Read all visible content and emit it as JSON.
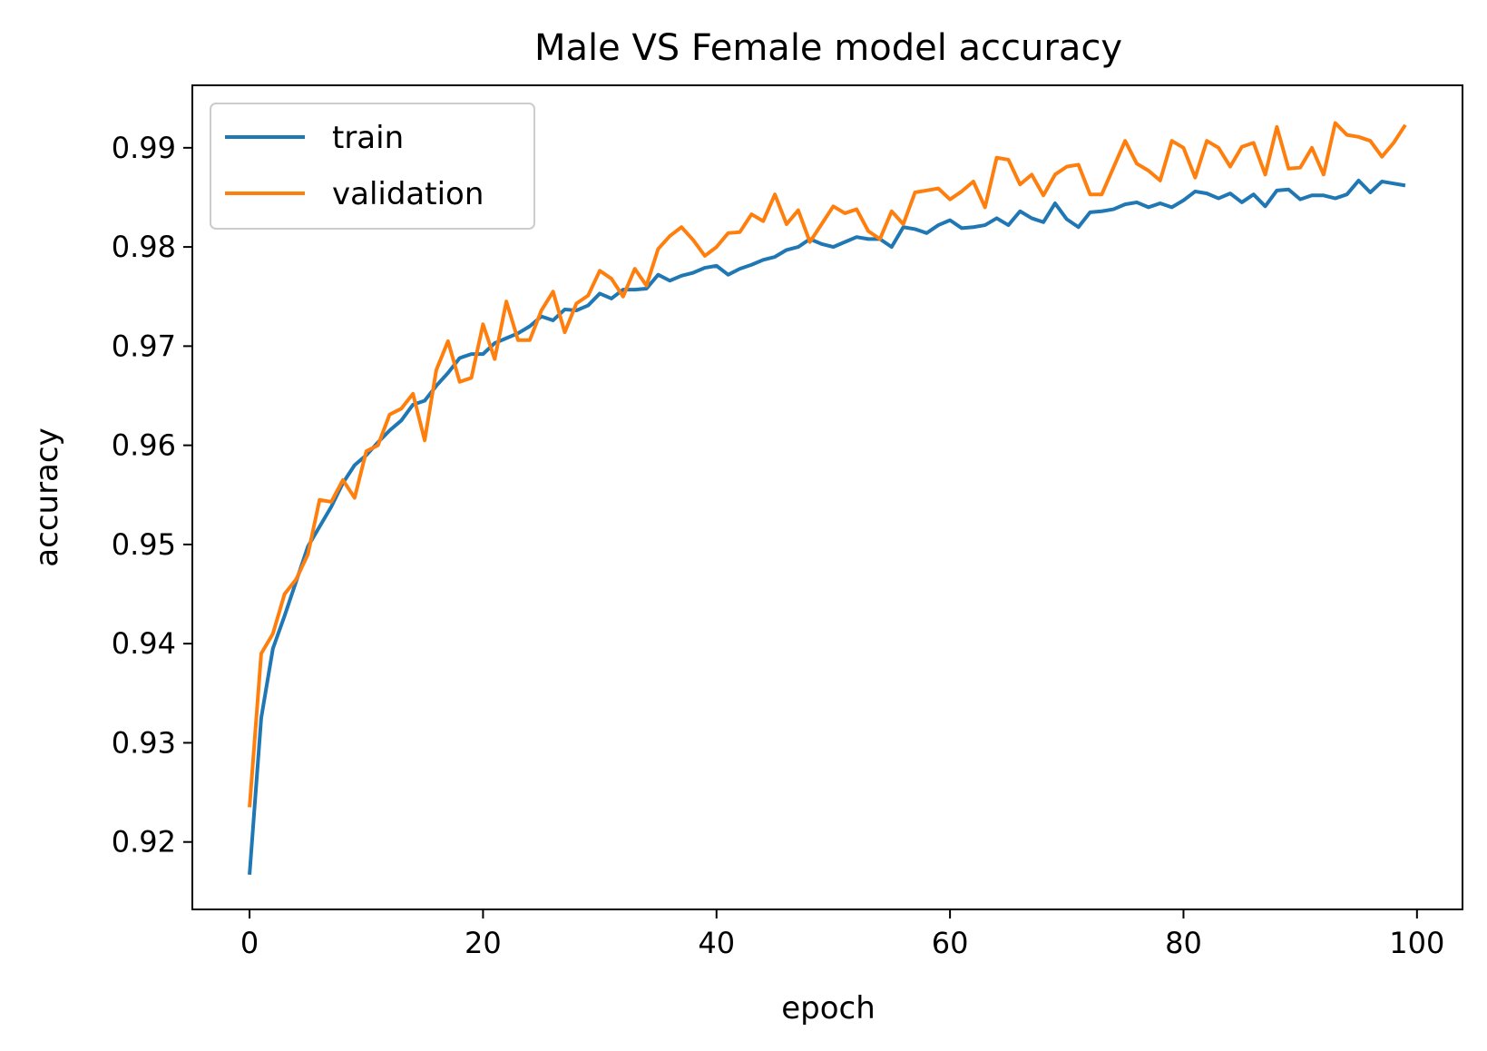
{
  "chart_data": {
    "type": "line",
    "title": "Male VS Female model accuracy",
    "xlabel": "epoch",
    "ylabel": "accuracy",
    "xlim": [
      -4.9,
      103.9
    ],
    "ylim": [
      0.9132,
      0.9963
    ],
    "xticks": [
      0,
      20,
      40,
      60,
      80,
      100
    ],
    "xtick_labels": [
      "0",
      "20",
      "40",
      "60",
      "80",
      "100"
    ],
    "yticks": [
      0.92,
      0.93,
      0.94,
      0.95,
      0.96,
      0.97,
      0.98,
      0.99
    ],
    "ytick_labels": [
      "0.92",
      "0.93",
      "0.94",
      "0.95",
      "0.96",
      "0.97",
      "0.98",
      "0.99"
    ],
    "grid": false,
    "legend_position": "top-left",
    "series": [
      {
        "name": "train",
        "color": "#1f77b4",
        "x": [
          0,
          1,
          2,
          3,
          4,
          5,
          6,
          7,
          8,
          9,
          10,
          11,
          12,
          13,
          14,
          15,
          16,
          17,
          18,
          19,
          20,
          21,
          22,
          23,
          24,
          25,
          26,
          27,
          28,
          29,
          30,
          31,
          32,
          33,
          34,
          35,
          36,
          37,
          38,
          39,
          40,
          41,
          42,
          43,
          44,
          45,
          46,
          47,
          48,
          49,
          50,
          51,
          52,
          53,
          54,
          55,
          56,
          57,
          58,
          59,
          60,
          61,
          62,
          63,
          64,
          65,
          66,
          67,
          68,
          69,
          70,
          71,
          72,
          73,
          74,
          75,
          76,
          77,
          78,
          79,
          80,
          81,
          82,
          83,
          84,
          85,
          86,
          87,
          88,
          89,
          90,
          91,
          92,
          93,
          94,
          95,
          96,
          97,
          98,
          99
        ],
        "values": [
          0.9167,
          0.9325,
          0.9395,
          0.9428,
          0.9463,
          0.9498,
          0.9518,
          0.9538,
          0.9562,
          0.958,
          0.959,
          0.9603,
          0.9615,
          0.9625,
          0.9641,
          0.9645,
          0.966,
          0.9673,
          0.9688,
          0.9692,
          0.9692,
          0.9703,
          0.9708,
          0.9713,
          0.972,
          0.973,
          0.9726,
          0.9737,
          0.9736,
          0.9741,
          0.9753,
          0.9748,
          0.9757,
          0.9757,
          0.9758,
          0.9772,
          0.9766,
          0.9771,
          0.9774,
          0.9779,
          0.9781,
          0.9772,
          0.9778,
          0.9782,
          0.9787,
          0.979,
          0.9797,
          0.98,
          0.9808,
          0.9803,
          0.98,
          0.9805,
          0.981,
          0.9808,
          0.9808,
          0.98,
          0.982,
          0.9818,
          0.9814,
          0.9822,
          0.9827,
          0.9819,
          0.982,
          0.9822,
          0.9829,
          0.9822,
          0.9836,
          0.9829,
          0.9825,
          0.9844,
          0.9828,
          0.982,
          0.9835,
          0.9836,
          0.9838,
          0.9843,
          0.9845,
          0.984,
          0.9844,
          0.984,
          0.9847,
          0.9856,
          0.9854,
          0.9849,
          0.9854,
          0.9845,
          0.9853,
          0.9841,
          0.9857,
          0.9858,
          0.9848,
          0.9852,
          0.9852,
          0.9849,
          0.9853,
          0.9867,
          0.9855,
          0.9866,
          0.9864,
          0.9862
        ]
      },
      {
        "name": "validation",
        "color": "#ff7f0e",
        "x": [
          0,
          1,
          2,
          3,
          4,
          5,
          6,
          7,
          8,
          9,
          10,
          11,
          12,
          13,
          14,
          15,
          16,
          17,
          18,
          19,
          20,
          21,
          22,
          23,
          24,
          25,
          26,
          27,
          28,
          29,
          30,
          31,
          32,
          33,
          34,
          35,
          36,
          37,
          38,
          39,
          40,
          41,
          42,
          43,
          44,
          45,
          46,
          47,
          48,
          49,
          50,
          51,
          52,
          53,
          54,
          55,
          56,
          57,
          58,
          59,
          60,
          61,
          62,
          63,
          64,
          65,
          66,
          67,
          68,
          69,
          70,
          71,
          72,
          73,
          74,
          75,
          76,
          77,
          78,
          79,
          80,
          81,
          82,
          83,
          84,
          85,
          86,
          87,
          88,
          89,
          90,
          91,
          92,
          93,
          94,
          95,
          96,
          97,
          98,
          99
        ],
        "values": [
          0.9235,
          0.939,
          0.941,
          0.945,
          0.9465,
          0.949,
          0.9545,
          0.9543,
          0.9565,
          0.9547,
          0.9594,
          0.96,
          0.9631,
          0.9637,
          0.9652,
          0.9605,
          0.9676,
          0.9705,
          0.9664,
          0.9668,
          0.9722,
          0.9687,
          0.9745,
          0.9706,
          0.9706,
          0.9736,
          0.9755,
          0.9714,
          0.9743,
          0.9751,
          0.9776,
          0.9768,
          0.975,
          0.9778,
          0.9761,
          0.9798,
          0.9811,
          0.982,
          0.9807,
          0.9791,
          0.98,
          0.9814,
          0.9815,
          0.9833,
          0.9826,
          0.9853,
          0.9823,
          0.9837,
          0.9805,
          0.9823,
          0.9841,
          0.9834,
          0.9838,
          0.9816,
          0.9808,
          0.9836,
          0.9823,
          0.9855,
          0.9857,
          0.9859,
          0.9848,
          0.9856,
          0.9866,
          0.984,
          0.989,
          0.9888,
          0.9863,
          0.9873,
          0.9852,
          0.9873,
          0.9881,
          0.9883,
          0.9853,
          0.9853,
          0.988,
          0.9907,
          0.9884,
          0.9877,
          0.9867,
          0.9907,
          0.99,
          0.987,
          0.9907,
          0.99,
          0.9881,
          0.9901,
          0.9905,
          0.9873,
          0.9921,
          0.9879,
          0.988,
          0.99,
          0.9873,
          0.9925,
          0.9913,
          0.9911,
          0.9907,
          0.9891,
          0.9905,
          0.9923
        ]
      }
    ]
  }
}
